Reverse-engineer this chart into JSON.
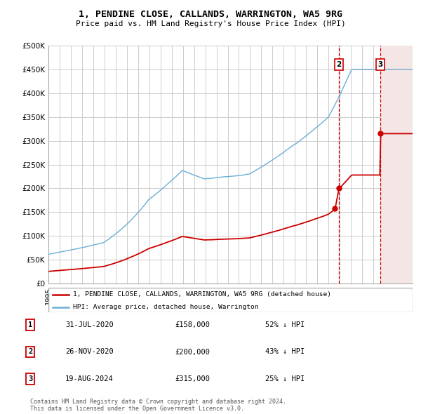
{
  "title_line1": "1, PENDINE CLOSE, CALLANDS, WARRINGTON, WA5 9RG",
  "title_line2": "Price paid vs. HM Land Registry's House Price Index (HPI)",
  "ylabel_ticks": [
    "£0",
    "£50K",
    "£100K",
    "£150K",
    "£200K",
    "£250K",
    "£300K",
    "£350K",
    "£400K",
    "£450K",
    "£500K"
  ],
  "ytick_values": [
    0,
    50000,
    100000,
    150000,
    200000,
    250000,
    300000,
    350000,
    400000,
    450000,
    500000
  ],
  "xlim_start": 1995.0,
  "xlim_end": 2027.5,
  "ylim_min": 0,
  "ylim_max": 500000,
  "hpi_color": "#6baed6",
  "price_color": "#cc0000",
  "transaction_color": "#cc0000",
  "transactions": [
    {
      "label": "1",
      "date_year": 2020.58,
      "price": 158000,
      "date_str": "31-JUL-2020",
      "pct": "52%"
    },
    {
      "label": "2",
      "date_year": 2020.92,
      "price": 200000,
      "date_str": "26-NOV-2020",
      "pct": "43%"
    },
    {
      "label": "3",
      "date_year": 2024.63,
      "price": 315000,
      "date_str": "19-AUG-2024",
      "pct": "25%"
    }
  ],
  "legend_entries": [
    {
      "label": "1, PENDINE CLOSE, CALLANDS, WARRINGTON, WA5 9RG (detached house)",
      "color": "#cc0000"
    },
    {
      "label": "HPI: Average price, detached house, Warrington",
      "color": "#6baed6"
    }
  ],
  "footer_line1": "Contains HM Land Registry data © Crown copyright and database right 2024.",
  "footer_line2": "This data is licensed under the Open Government Licence v3.0.",
  "grid_color": "#cccccc",
  "background_color": "#ffffff"
}
